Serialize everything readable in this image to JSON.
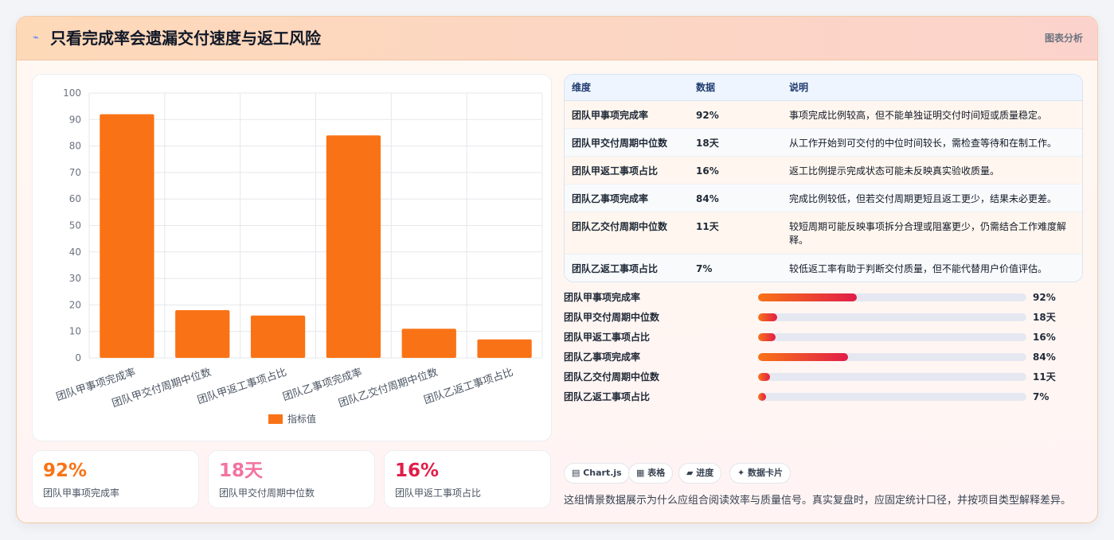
{
  "header": {
    "icon": "spark-icon",
    "title": "只看完成率会遗漏交付速度与返工风险",
    "tag": "图表分析"
  },
  "chart_data": {
    "type": "bar",
    "categories": [
      "团队甲事项完成率",
      "团队甲交付周期中位数",
      "团队甲返工事项占比",
      "团队乙事项完成率",
      "团队乙交付周期中位数",
      "团队乙返工事项占比"
    ],
    "series": [
      {
        "name": "指标值",
        "values": [
          92,
          18,
          16,
          84,
          11,
          7
        ],
        "color": "#f97316"
      }
    ],
    "ylim": [
      0,
      100
    ],
    "yticks": [
      0,
      10,
      20,
      30,
      40,
      50,
      60,
      70,
      80,
      90,
      100
    ],
    "grid": true,
    "legend": "bottom"
  },
  "stats": [
    {
      "value": "92%",
      "label": "团队甲事项完成率",
      "color": "#f97316"
    },
    {
      "value": "18天",
      "label": "团队甲交付周期中位数",
      "color": "#f472a0"
    },
    {
      "value": "16%",
      "label": "团队甲返工事项占比",
      "color": "#e11d48"
    }
  ],
  "table": {
    "headers": [
      "维度",
      "数据",
      "说明"
    ],
    "rows": [
      {
        "dim": "团队甲事项完成率",
        "val": "92%",
        "desc": "事项完成比例较高，但不能单独证明交付时间短或质量稳定。"
      },
      {
        "dim": "团队甲交付周期中位数",
        "val": "18天",
        "desc": "从工作开始到可交付的中位时间较长，需检查等待和在制工作。"
      },
      {
        "dim": "团队甲返工事项占比",
        "val": "16%",
        "desc": "返工比例提示完成状态可能未反映真实验收质量。"
      },
      {
        "dim": "团队乙事项完成率",
        "val": "84%",
        "desc": "完成比例较低，但若交付周期更短且返工更少，结果未必更差。"
      },
      {
        "dim": "团队乙交付周期中位数",
        "val": "11天",
        "desc": "较短周期可能反映事项拆分合理或阻塞更少，仍需结合工作难度解释。"
      },
      {
        "dim": "团队乙返工事项占比",
        "val": "7%",
        "desc": "较低返工率有助于判断交付质量，但不能代替用户价值评估。"
      }
    ]
  },
  "progress": [
    {
      "label": "团队甲事项完成率",
      "value": "92%",
      "fraction": 0.92
    },
    {
      "label": "团队甲交付周期中位数",
      "value": "18天",
      "fraction": 0.18
    },
    {
      "label": "团队甲返工事项占比",
      "value": "16%",
      "fraction": 0.16
    },
    {
      "label": "团队乙事项完成率",
      "value": "84%",
      "fraction": 0.84
    },
    {
      "label": "团队乙交付周期中位数",
      "value": "11天",
      "fraction": 0.11
    },
    {
      "label": "团队乙返工事项占比",
      "value": "7%",
      "fraction": 0.07
    }
  ],
  "chips": [
    {
      "label": "▤ Chart.js",
      "icon": "chart-icon"
    },
    {
      "label": "▦ 表格",
      "icon": "table-icon"
    },
    {
      "label": "▰ 进度",
      "icon": "progress-icon"
    },
    {
      "label": "✦ 数据卡片",
      "icon": "sparkle-icon"
    }
  ],
  "note": "这组情景数据展示为什么应组合阅读效率与质量信号。真实复盘时，应固定统计口径，并按项目类型解释差异。"
}
